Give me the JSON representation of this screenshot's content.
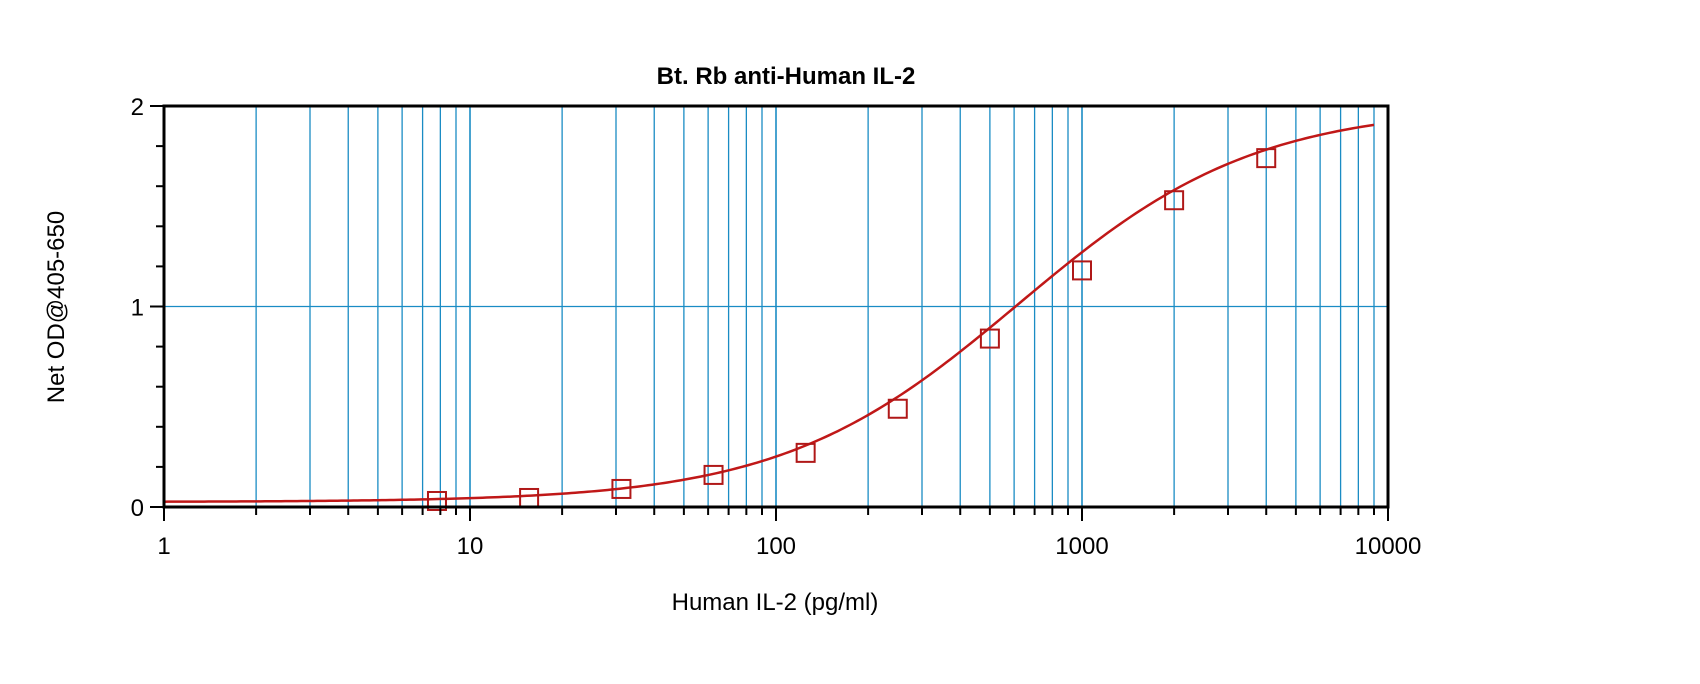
{
  "chart_data": {
    "type": "scatter",
    "title": "Bt. Rb anti-Human IL-2",
    "xlabel": "Human IL-2 (pg/ml)",
    "ylabel": "Net OD@405-650",
    "xscale": "log",
    "xlim": [
      1,
      10000
    ],
    "ylim": [
      0,
      2
    ],
    "xticks": [
      {
        "value": 1,
        "label": "1"
      },
      {
        "value": 10,
        "label": "10"
      },
      {
        "value": 100,
        "label": "100"
      },
      {
        "value": 1000,
        "label": "1000"
      },
      {
        "value": 10000,
        "label": "10000"
      }
    ],
    "yticks": [
      {
        "value": 0,
        "label": "0"
      },
      {
        "value": 1,
        "label": "1"
      },
      {
        "value": 2,
        "label": "2"
      }
    ],
    "grid": true,
    "legend": "none",
    "series": [
      {
        "marker": "square",
        "points": [
          {
            "x": 7.8,
            "y": 0.03
          },
          {
            "x": 15.6,
            "y": 0.045
          },
          {
            "x": 31.25,
            "y": 0.09
          },
          {
            "x": 62.5,
            "y": 0.16
          },
          {
            "x": 125,
            "y": 0.27
          },
          {
            "x": 250,
            "y": 0.49
          },
          {
            "x": 500,
            "y": 0.84
          },
          {
            "x": 1000,
            "y": 1.18
          },
          {
            "x": 2000,
            "y": 1.53
          },
          {
            "x": 4000,
            "y": 1.74
          }
        ]
      }
    ],
    "fit_curve": {
      "type": "4PL",
      "bottom": 0.025,
      "top": 2.0,
      "ec50": 620,
      "hill": 1.12,
      "xrange": [
        1,
        9000
      ]
    },
    "colors": {
      "grid": "#1a8cc4",
      "curve": "#c01818",
      "marker": "#b01818",
      "axis": "#000000"
    }
  }
}
